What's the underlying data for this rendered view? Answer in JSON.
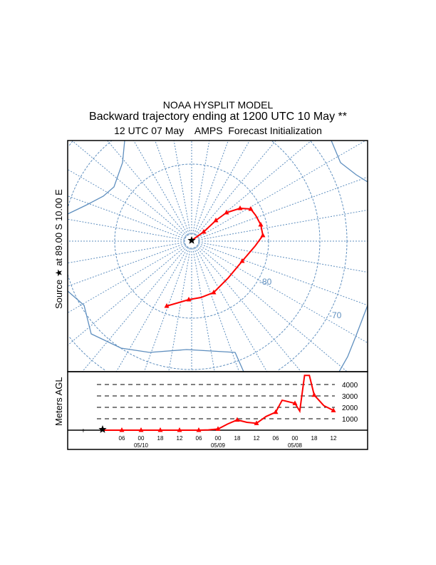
{
  "header": {
    "line1": "NOAA HYSPLIT MODEL",
    "line2": "Backward trajectory ending at 1200 UTC 10 May **",
    "line3": "12 UTC 07 May    AMPS  Forecast Initialization"
  },
  "source_label": "Source ★ at   89.00 S   10.00 E",
  "height_axis_label": "Meters AGL",
  "map": {
    "lat_labels": [
      "-80",
      "-70"
    ],
    "trajectory_color": "#ff0000",
    "grid_color": "#5f8fbf",
    "source_marker": "star-icon"
  },
  "chart_data": {
    "type": "line",
    "title": "",
    "ylabel": "Meters AGL",
    "y_ticks": [
      "1000",
      "2000",
      "3000",
      "4000"
    ],
    "x_tick_labels": [
      "06",
      "00",
      "18",
      "12",
      "06",
      "00",
      "18",
      "12",
      "06",
      "00",
      "18",
      "12"
    ],
    "date_labels": [
      "05/10",
      "05/09",
      "05/08"
    ],
    "hours_back": [
      0,
      6,
      12,
      18,
      24,
      30,
      33,
      36,
      39,
      42,
      45,
      48,
      51,
      54,
      56,
      57,
      60,
      61.5,
      63,
      64.5,
      66,
      69,
      72
    ],
    "height_m": [
      0,
      0,
      0,
      0,
      0,
      0,
      20,
      100,
      540,
      900,
      690,
      600,
      1200,
      1580,
      2620,
      2560,
      2350,
      1670,
      4800,
      4800,
      3080,
      2150,
      1730
    ]
  }
}
